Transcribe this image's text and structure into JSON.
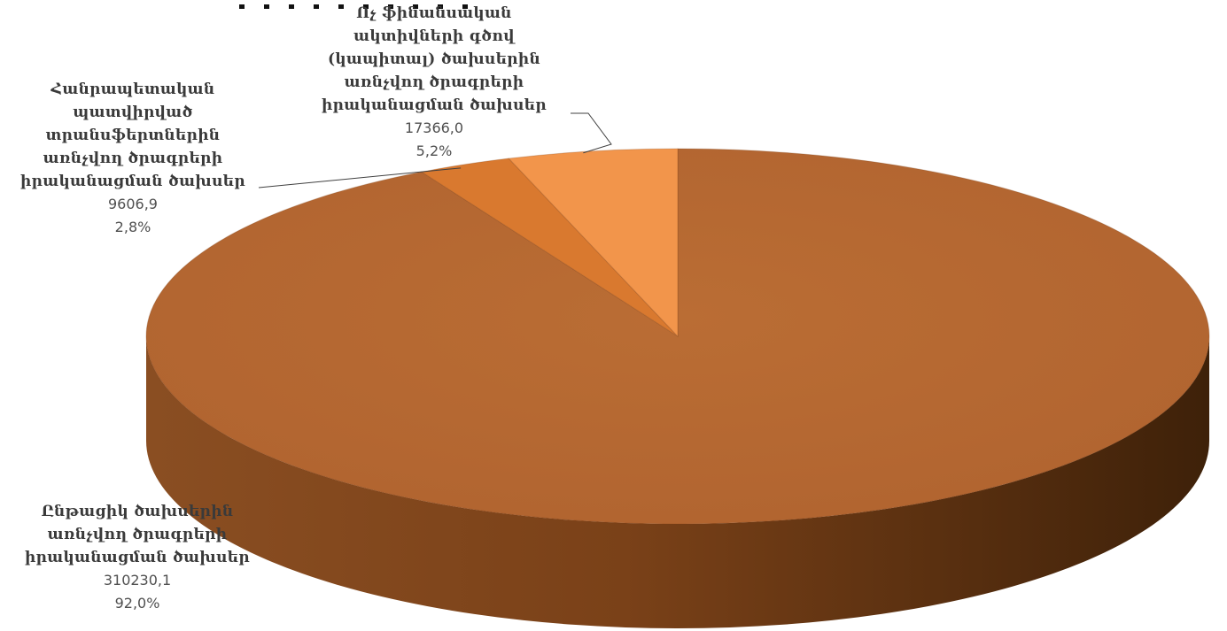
{
  "chart_data": {
    "type": "pie",
    "title": "",
    "slices": [
      {
        "label": "Ընթացիկ ծախսերին\nառնչվող ծրագրերի\nիրականացման ծախսեր",
        "value_text": "310230,1",
        "percent_text": "92,0%",
        "value": 310230.1,
        "percent": 92.0,
        "color": "#B96A32"
      },
      {
        "label": "Հանրապետական\nպատվիրված\nտրանսֆերտներին\nառնչվող ծրագրերի\nիրականացման ծախսեր",
        "value_text": "9606,9",
        "percent_text": "2,8%",
        "value": 9606.9,
        "percent": 2.8,
        "color": "#D9792F"
      },
      {
        "label": "Ոչ ֆինանսական\nակտիվների գծով\n(կապիտալ) ծախսերին\nառնչվող ծրագրերի\nիրականացման ծախսեր",
        "value_text": "17366,0",
        "percent_text": "5,2%",
        "value": 17366.0,
        "percent": 5.2,
        "color": "#F2954B"
      }
    ]
  }
}
